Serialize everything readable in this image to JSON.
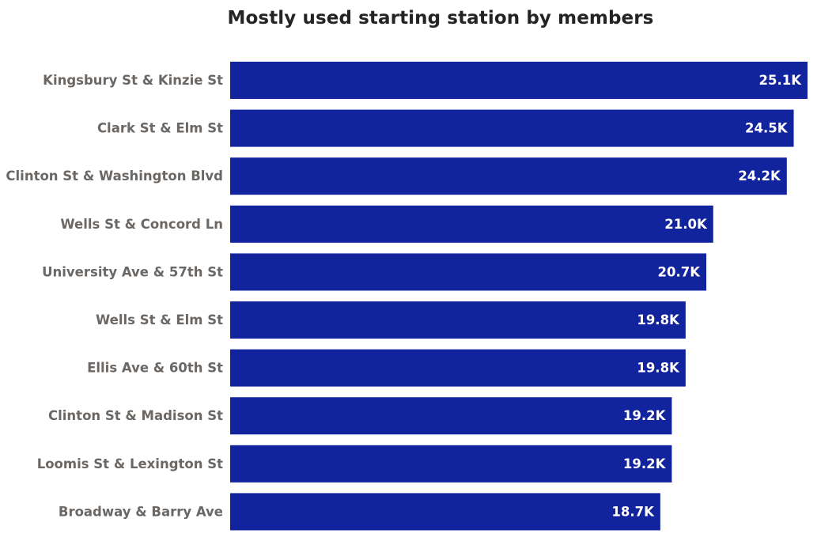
{
  "chart_data": {
    "type": "bar",
    "orientation": "horizontal",
    "title": "Mostly used starting station by members",
    "categories": [
      "Kingsbury St & Kinzie St",
      "Clark St & Elm St",
      "Clinton St & Washington Blvd",
      "Wells St & Concord Ln",
      "University Ave & 57th St",
      "Wells St & Elm St",
      "Ellis Ave & 60th St",
      "Clinton St & Madison St",
      "Loomis St & Lexington St",
      "Broadway & Barry Ave"
    ],
    "values": [
      25100,
      24500,
      24200,
      21000,
      20700,
      19800,
      19800,
      19200,
      19200,
      18700
    ],
    "value_labels": [
      "25.1K",
      "24.5K",
      "24.2K",
      "21.0K",
      "20.7K",
      "19.8K",
      "19.8K",
      "19.2K",
      "19.2K",
      "18.7K"
    ],
    "xlim": [
      0,
      25100
    ],
    "xlabel": "",
    "ylabel": "",
    "grid": false,
    "legend": "none",
    "bar_color": "#12239e"
  }
}
